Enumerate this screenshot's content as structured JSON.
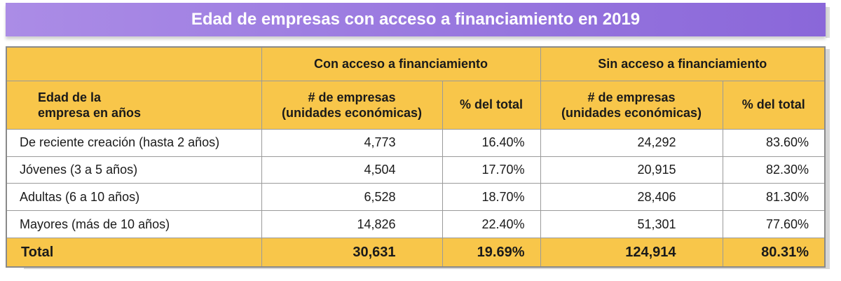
{
  "title": "Edad de empresas con acceso a financiamiento en 2019",
  "colors": {
    "banner": "#9f7fe2",
    "header": "#f8c64a",
    "total": "#f8c64a"
  },
  "header": {
    "group_with": "Con acceso a financiamiento",
    "group_without": "Sin acceso a financiamiento",
    "age_col_line1": "Edad de la",
    "age_col_line2": "empresa en años",
    "count_line1": "# de empresas",
    "count_line2": "(unidades económicas)",
    "pct_label": "% del total"
  },
  "rows": [
    {
      "label": "De reciente creación (hasta 2 años)",
      "with_count": "4,773",
      "with_pct": "16.40%",
      "without_count": "24,292",
      "without_pct": "83.60%"
    },
    {
      "label": "Jóvenes (3 a 5 años)",
      "with_count": "4,504",
      "with_pct": "17.70%",
      "without_count": "20,915",
      "without_pct": "82.30%"
    },
    {
      "label": "Adultas (6 a 10 años)",
      "with_count": "6,528",
      "with_pct": "18.70%",
      "without_count": "28,406",
      "without_pct": "81.30%"
    },
    {
      "label": "Mayores (más de 10 años)",
      "with_count": "14,826",
      "with_pct": "22.40%",
      "without_count": "51,301",
      "without_pct": "77.60%"
    }
  ],
  "total": {
    "label": "Total",
    "with_count": "30,631",
    "with_pct": "19.69%",
    "without_count": "124,914",
    "without_pct": "80.31%"
  },
  "chart_data": {
    "type": "table",
    "title": "Edad de empresas con acceso a financiamiento en 2019",
    "columns": [
      "Edad de la empresa en años",
      "Con acceso a financiamiento: # de empresas (unidades económicas)",
      "Con acceso a financiamiento: % del total",
      "Sin acceso a financiamiento: # de empresas (unidades económicas)",
      "Sin acceso a financiamiento: % del total"
    ],
    "rows": [
      [
        "De reciente creación (hasta 2 años)",
        4773,
        16.4,
        24292,
        83.6
      ],
      [
        "Jóvenes (3 a 5 años)",
        4504,
        17.7,
        20915,
        82.3
      ],
      [
        "Adultas (6 a 10 años)",
        6528,
        18.7,
        28406,
        81.3
      ],
      [
        "Mayores (más de 10 años)",
        14826,
        22.4,
        51301,
        77.6
      ],
      [
        "Total",
        30631,
        19.69,
        124914,
        80.31
      ]
    ]
  }
}
